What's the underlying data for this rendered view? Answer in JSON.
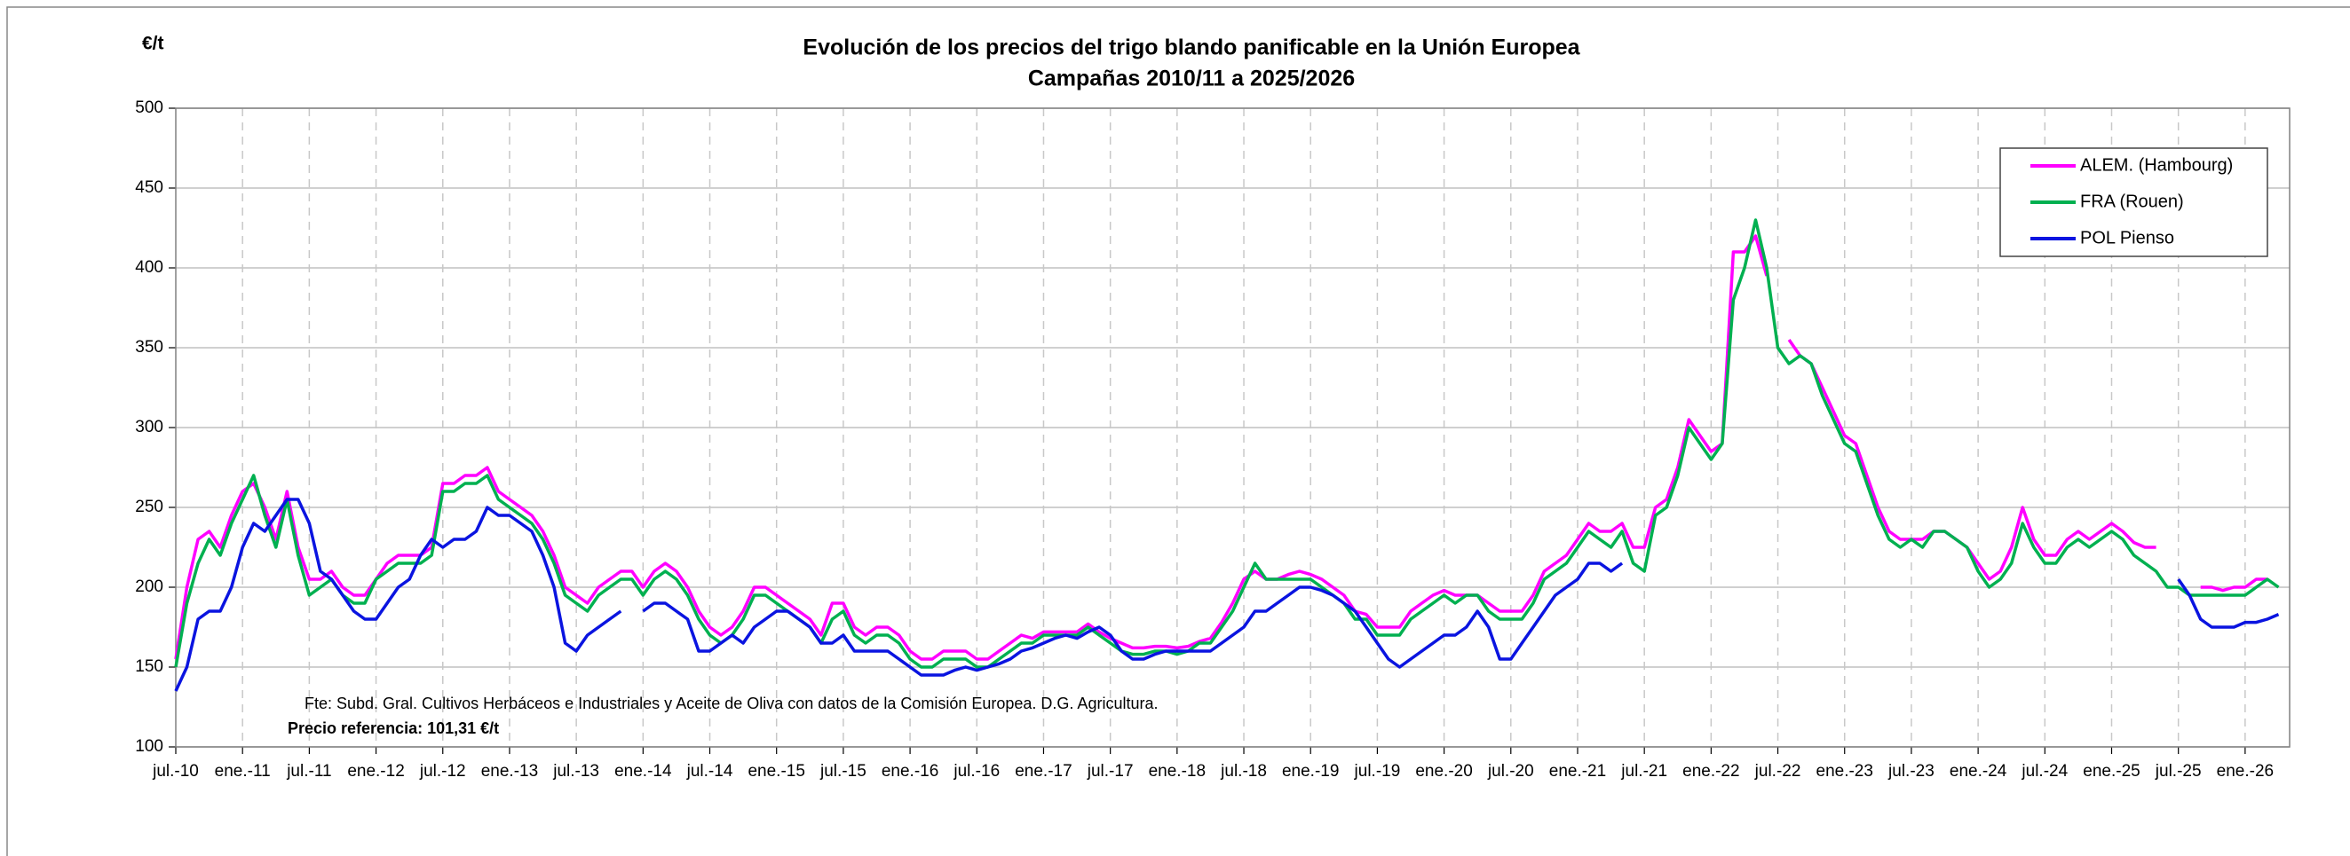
{
  "chart_data": {
    "type": "line",
    "title": "Evolución de los precios del trigo blando panificable en la Unión Europea",
    "subtitle": "Campañas 2010/11 a 2025/2026",
    "y_label": "€/t",
    "annotations": [
      "Fte: Subd. Gral. Cultivos Herbáceos e Industriales y Aceite de Oliva con datos de la Comisión Europea. D.G. Agricultura.",
      "Precio referencia: 101,31 €/t"
    ],
    "x": [
      "2010-07",
      "2010-08",
      "2010-09",
      "2010-10",
      "2010-11",
      "2010-12",
      "2011-01",
      "2011-02",
      "2011-03",
      "2011-04",
      "2011-05",
      "2011-06",
      "2011-07",
      "2011-08",
      "2011-09",
      "2011-10",
      "2011-11",
      "2011-12",
      "2012-01",
      "2012-02",
      "2012-03",
      "2012-04",
      "2012-05",
      "2012-06",
      "2012-07",
      "2012-08",
      "2012-09",
      "2012-10",
      "2012-11",
      "2012-12",
      "2013-01",
      "2013-02",
      "2013-03",
      "2013-04",
      "2013-05",
      "2013-06",
      "2013-07",
      "2013-08",
      "2013-09",
      "2013-10",
      "2013-11",
      "2013-12",
      "2014-01",
      "2014-02",
      "2014-03",
      "2014-04",
      "2014-05",
      "2014-06",
      "2014-07",
      "2014-08",
      "2014-09",
      "2014-10",
      "2014-11",
      "2014-12",
      "2015-01",
      "2015-02",
      "2015-03",
      "2015-04",
      "2015-05",
      "2015-06",
      "2015-07",
      "2015-08",
      "2015-09",
      "2015-10",
      "2015-11",
      "2015-12",
      "2016-01",
      "2016-02",
      "2016-03",
      "2016-04",
      "2016-05",
      "2016-06",
      "2016-07",
      "2016-08",
      "2016-09",
      "2016-10",
      "2016-11",
      "2016-12",
      "2017-01",
      "2017-02",
      "2017-03",
      "2017-04",
      "2017-05",
      "2017-06",
      "2017-07",
      "2017-08",
      "2017-09",
      "2017-10",
      "2017-11",
      "2017-12",
      "2018-01",
      "2018-02",
      "2018-03",
      "2018-04",
      "2018-05",
      "2018-06",
      "2018-07",
      "2018-08",
      "2018-09",
      "2018-10",
      "2018-11",
      "2018-12",
      "2019-01",
      "2019-02",
      "2019-03",
      "2019-04",
      "2019-05",
      "2019-06",
      "2019-07",
      "2019-08",
      "2019-09",
      "2019-10",
      "2019-11",
      "2019-12",
      "2020-01",
      "2020-02",
      "2020-03",
      "2020-04",
      "2020-05",
      "2020-06",
      "2020-07",
      "2020-08",
      "2020-09",
      "2020-10",
      "2020-11",
      "2020-12",
      "2021-01",
      "2021-02",
      "2021-03",
      "2021-04",
      "2021-05",
      "2021-06",
      "2021-07",
      "2021-08",
      "2021-09",
      "2021-10",
      "2021-11",
      "2021-12",
      "2022-01",
      "2022-02",
      "2022-03",
      "2022-04",
      "2022-05",
      "2022-06",
      "2022-07",
      "2022-08",
      "2022-09",
      "2022-10",
      "2022-11",
      "2022-12",
      "2023-01",
      "2023-02",
      "2023-03",
      "2023-04",
      "2023-05",
      "2023-06",
      "2023-07",
      "2023-08",
      "2023-09",
      "2023-10",
      "2023-11",
      "2023-12",
      "2024-01",
      "2024-02",
      "2024-03",
      "2024-04",
      "2024-05",
      "2024-06",
      "2024-07",
      "2024-08",
      "2024-09",
      "2024-10",
      "2024-11",
      "2024-12",
      "2025-01",
      "2025-02",
      "2025-03",
      "2025-04",
      "2025-05",
      "2025-06",
      "2025-07",
      "2025-08",
      "2025-09",
      "2025-10",
      "2025-11",
      "2025-12",
      "2026-01",
      "2026-02",
      "2026-03",
      "2026-04"
    ],
    "series": [
      {
        "name": "ALEM. (Hambourg)",
        "color": "#ff00ff",
        "values": [
          155,
          200,
          230,
          235,
          225,
          245,
          260,
          265,
          250,
          230,
          260,
          225,
          205,
          205,
          210,
          200,
          195,
          195,
          205,
          215,
          220,
          220,
          220,
          225,
          265,
          265,
          270,
          270,
          275,
          260,
          255,
          250,
          245,
          235,
          220,
          200,
          195,
          190,
          200,
          205,
          210,
          210,
          200,
          210,
          215,
          210,
          200,
          185,
          175,
          170,
          175,
          185,
          200,
          200,
          195,
          190,
          185,
          180,
          170,
          190,
          190,
          175,
          170,
          175,
          175,
          170,
          160,
          155,
          155,
          160,
          160,
          160,
          155,
          155,
          160,
          165,
          170,
          168,
          172,
          172,
          172,
          172,
          177,
          172,
          168,
          165,
          162,
          162,
          163,
          163,
          162,
          163,
          166,
          168,
          178,
          190,
          205,
          210,
          205,
          205,
          208,
          210,
          208,
          205,
          200,
          195,
          185,
          183,
          175,
          175,
          175,
          185,
          190,
          195,
          198,
          195,
          195,
          195,
          190,
          185,
          185,
          185,
          195,
          210,
          215,
          220,
          230,
          240,
          235,
          235,
          240,
          225,
          225,
          250,
          255,
          275,
          305,
          295,
          285,
          290,
          410,
          410,
          420,
          395,
          null,
          355,
          345,
          340,
          325,
          310,
          295,
          290,
          270,
          250,
          235,
          230,
          230,
          230,
          235,
          235,
          230,
          225,
          215,
          205,
          210,
          225,
          250,
          230,
          220,
          220,
          230,
          235,
          230,
          235,
          240,
          235,
          228,
          225,
          225,
          null,
          null,
          null,
          200,
          200,
          198,
          200,
          200,
          205,
          205,
          null
        ]
      },
      {
        "name": "FRA (Rouen)",
        "color": "#00b050",
        "values": [
          150,
          190,
          215,
          230,
          220,
          240,
          255,
          270,
          245,
          225,
          255,
          220,
          195,
          200,
          205,
          195,
          190,
          190,
          205,
          210,
          215,
          215,
          215,
          220,
          260,
          260,
          265,
          265,
          270,
          255,
          250,
          245,
          240,
          230,
          215,
          195,
          190,
          185,
          195,
          200,
          205,
          205,
          195,
          205,
          210,
          205,
          195,
          180,
          170,
          165,
          170,
          180,
          195,
          195,
          190,
          185,
          180,
          175,
          165,
          180,
          185,
          170,
          165,
          170,
          170,
          165,
          155,
          150,
          150,
          155,
          155,
          155,
          150,
          150,
          155,
          160,
          165,
          165,
          170,
          170,
          170,
          170,
          175,
          170,
          165,
          160,
          158,
          158,
          160,
          160,
          158,
          160,
          165,
          165,
          175,
          185,
          200,
          215,
          205,
          205,
          205,
          205,
          205,
          200,
          195,
          190,
          180,
          180,
          170,
          170,
          170,
          180,
          185,
          190,
          195,
          190,
          195,
          195,
          185,
          180,
          180,
          180,
          190,
          205,
          210,
          215,
          225,
          235,
          230,
          225,
          235,
          215,
          210,
          245,
          250,
          270,
          300,
          290,
          280,
          290,
          380,
          400,
          430,
          400,
          350,
          340,
          345,
          340,
          320,
          305,
          290,
          285,
          265,
          245,
          230,
          225,
          230,
          225,
          235,
          235,
          230,
          225,
          210,
          200,
          205,
          215,
          240,
          225,
          215,
          215,
          225,
          230,
          225,
          230,
          235,
          230,
          220,
          215,
          210,
          200,
          200,
          195,
          195,
          195,
          195,
          195,
          195,
          200,
          205,
          200
        ]
      },
      {
        "name": "POL  Pienso",
        "color": "#0a14e0",
        "values": [
          135,
          150,
          180,
          185,
          185,
          200,
          225,
          240,
          235,
          245,
          255,
          255,
          240,
          210,
          205,
          195,
          185,
          180,
          180,
          190,
          200,
          205,
          220,
          230,
          225,
          230,
          230,
          235,
          250,
          245,
          245,
          240,
          235,
          220,
          200,
          165,
          160,
          170,
          175,
          180,
          185,
          null,
          185,
          190,
          190,
          185,
          180,
          160,
          160,
          165,
          170,
          165,
          175,
          180,
          185,
          185,
          180,
          175,
          165,
          165,
          170,
          160,
          160,
          160,
          160,
          155,
          150,
          145,
          145,
          145,
          148,
          150,
          148,
          150,
          152,
          155,
          160,
          162,
          165,
          168,
          170,
          168,
          172,
          175,
          170,
          160,
          155,
          155,
          158,
          160,
          160,
          160,
          160,
          160,
          165,
          170,
          175,
          185,
          185,
          190,
          195,
          200,
          200,
          198,
          195,
          190,
          185,
          175,
          165,
          155,
          150,
          155,
          160,
          165,
          170,
          170,
          175,
          185,
          175,
          155,
          155,
          165,
          175,
          185,
          195,
          200,
          205,
          215,
          215,
          210,
          215,
          null,
          null,
          null,
          null,
          null,
          null,
          null,
          null,
          null,
          null,
          null,
          null,
          null,
          null,
          null,
          null,
          null,
          null,
          null,
          null,
          null,
          null,
          null,
          null,
          null,
          null,
          null,
          null,
          null,
          null,
          null,
          null,
          null,
          null,
          null,
          null,
          null,
          null,
          null,
          null,
          null,
          null,
          null,
          null,
          null,
          null,
          null,
          null,
          null,
          205,
          195,
          180,
          175,
          175,
          175,
          178,
          178,
          180,
          183
        ]
      }
    ],
    "xlim": [
      "2010-07",
      "2026-05"
    ],
    "xticks": [
      {
        "value": "2010-07",
        "label": "jul.-10"
      },
      {
        "value": "2011-01",
        "label": "ene.-11"
      },
      {
        "value": "2011-07",
        "label": "jul.-11"
      },
      {
        "value": "2012-01",
        "label": "ene.-12"
      },
      {
        "value": "2012-07",
        "label": "jul.-12"
      },
      {
        "value": "2013-01",
        "label": "ene.-13"
      },
      {
        "value": "2013-07",
        "label": "jul.-13"
      },
      {
        "value": "2014-01",
        "label": "ene.-14"
      },
      {
        "value": "2014-07",
        "label": "jul.-14"
      },
      {
        "value": "2015-01",
        "label": "ene.-15"
      },
      {
        "value": "2015-07",
        "label": "jul.-15"
      },
      {
        "value": "2016-01",
        "label": "ene.-16"
      },
      {
        "value": "2016-07",
        "label": "jul.-16"
      },
      {
        "value": "2017-01",
        "label": "ene.-17"
      },
      {
        "value": "2017-07",
        "label": "jul.-17"
      },
      {
        "value": "2018-01",
        "label": "ene.-18"
      },
      {
        "value": "2018-07",
        "label": "jul.-18"
      },
      {
        "value": "2019-01",
        "label": "ene.-19"
      },
      {
        "value": "2019-07",
        "label": "jul.-19"
      },
      {
        "value": "2020-01",
        "label": "ene.-20"
      },
      {
        "value": "2020-07",
        "label": "jul.-20"
      },
      {
        "value": "2021-01",
        "label": "ene.-21"
      },
      {
        "value": "2021-07",
        "label": "jul.-21"
      },
      {
        "value": "2022-01",
        "label": "ene.-22"
      },
      {
        "value": "2022-07",
        "label": "jul.-22"
      },
      {
        "value": "2023-01",
        "label": "ene.-23"
      },
      {
        "value": "2023-07",
        "label": "jul.-23"
      },
      {
        "value": "2024-01",
        "label": "ene.-24"
      },
      {
        "value": "2024-07",
        "label": "jul.-24"
      },
      {
        "value": "2025-01",
        "label": "ene.-25"
      },
      {
        "value": "2025-07",
        "label": "jul.-25"
      },
      {
        "value": "2026-01",
        "label": "ene.-26"
      }
    ],
    "ylim": [
      100,
      500
    ],
    "yticks": [
      100,
      150,
      200,
      250,
      300,
      350,
      400,
      450,
      500
    ],
    "grid": true,
    "legend": "upper right"
  }
}
